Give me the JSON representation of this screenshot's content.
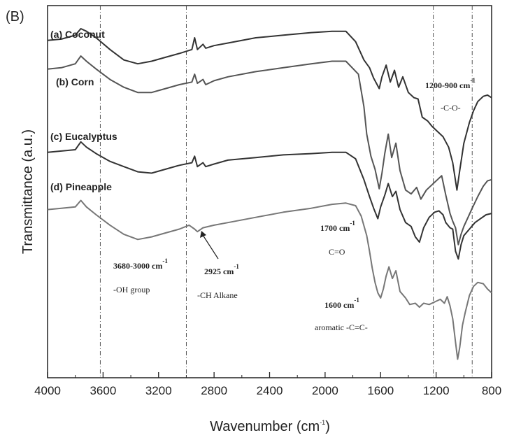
{
  "chart_data": {
    "type": "line",
    "panel_label": "(B)",
    "xlabel": "Wavenumber (cm",
    "xlabel_sup": "-1",
    "xlabel_close": ")",
    "ylabel": "Transmittance (a.u.)",
    "xlim": [
      4000,
      800
    ],
    "x_reversed": true,
    "xticks": [
      4000,
      3600,
      3200,
      2800,
      2400,
      2000,
      1600,
      1200,
      800
    ],
    "reference_lines": [
      3620,
      3000,
      1220,
      940
    ],
    "grid": false,
    "series": [
      {
        "name": "(a) Coconut",
        "color": "#333333",
        "offset": 0,
        "points": [
          [
            4000,
            32
          ],
          [
            3900,
            30
          ],
          [
            3800,
            24
          ],
          [
            3760,
            14
          ],
          [
            3720,
            18
          ],
          [
            3650,
            28
          ],
          [
            3550,
            46
          ],
          [
            3450,
            62
          ],
          [
            3350,
            68
          ],
          [
            3250,
            64
          ],
          [
            3150,
            58
          ],
          [
            3050,
            52
          ],
          [
            2960,
            46
          ],
          [
            2940,
            28
          ],
          [
            2920,
            46
          ],
          [
            2880,
            38
          ],
          [
            2860,
            44
          ],
          [
            2800,
            40
          ],
          [
            2700,
            36
          ],
          [
            2500,
            28
          ],
          [
            2300,
            24
          ],
          [
            2100,
            20
          ],
          [
            1950,
            18
          ],
          [
            1850,
            18
          ],
          [
            1780,
            34
          ],
          [
            1720,
            62
          ],
          [
            1680,
            74
          ],
          [
            1650,
            90
          ],
          [
            1610,
            106
          ],
          [
            1590,
            88
          ],
          [
            1560,
            70
          ],
          [
            1530,
            96
          ],
          [
            1500,
            78
          ],
          [
            1470,
            104
          ],
          [
            1440,
            88
          ],
          [
            1400,
            112
          ],
          [
            1360,
            120
          ],
          [
            1330,
            122
          ],
          [
            1300,
            150
          ],
          [
            1260,
            156
          ],
          [
            1230,
            164
          ],
          [
            1190,
            172
          ],
          [
            1150,
            180
          ],
          [
            1110,
            196
          ],
          [
            1080,
            220
          ],
          [
            1050,
            262
          ],
          [
            1030,
            232
          ],
          [
            1000,
            190
          ],
          [
            960,
            158
          ],
          [
            930,
            140
          ],
          [
            900,
            126
          ],
          [
            860,
            118
          ],
          [
            830,
            116
          ],
          [
            800,
            120
          ]
        ]
      },
      {
        "name": "(b) Corn",
        "color": "#555555",
        "offset": 70,
        "points": [
          [
            4000,
            76
          ],
          [
            3900,
            74
          ],
          [
            3800,
            68
          ],
          [
            3760,
            56
          ],
          [
            3720,
            64
          ],
          [
            3650,
            76
          ],
          [
            3550,
            92
          ],
          [
            3450,
            104
          ],
          [
            3350,
            112
          ],
          [
            3250,
            112
          ],
          [
            3150,
            106
          ],
          [
            3050,
            100
          ],
          [
            2960,
            96
          ],
          [
            2940,
            84
          ],
          [
            2920,
            98
          ],
          [
            2880,
            92
          ],
          [
            2860,
            100
          ],
          [
            2800,
            94
          ],
          [
            2700,
            88
          ],
          [
            2500,
            80
          ],
          [
            2300,
            74
          ],
          [
            2100,
            68
          ],
          [
            1950,
            64
          ],
          [
            1850,
            64
          ],
          [
            1760,
            84
          ],
          [
            1720,
            134
          ],
          [
            1700,
            176
          ],
          [
            1670,
            210
          ],
          [
            1640,
            230
          ],
          [
            1610,
            260
          ],
          [
            1590,
            236
          ],
          [
            1570,
            206
          ],
          [
            1545,
            176
          ],
          [
            1520,
            212
          ],
          [
            1490,
            190
          ],
          [
            1460,
            232
          ],
          [
            1420,
            262
          ],
          [
            1380,
            268
          ],
          [
            1340,
            258
          ],
          [
            1310,
            276
          ],
          [
            1270,
            262
          ],
          [
            1230,
            254
          ],
          [
            1190,
            246
          ],
          [
            1160,
            240
          ],
          [
            1130,
            270
          ],
          [
            1100,
            298
          ],
          [
            1080,
            310
          ],
          [
            1060,
            320
          ],
          [
            1040,
            346
          ],
          [
            1020,
            330
          ],
          [
            1000,
            318
          ],
          [
            970,
            304
          ],
          [
            940,
            290
          ],
          [
            900,
            272
          ],
          [
            860,
            256
          ],
          [
            830,
            248
          ],
          [
            800,
            246
          ]
        ]
      },
      {
        "name": "(c) Eucalyptus",
        "color": "#333333",
        "offset": 140,
        "points": [
          [
            4000,
            204
          ],
          [
            3900,
            202
          ],
          [
            3800,
            200
          ],
          [
            3760,
            188
          ],
          [
            3720,
            196
          ],
          [
            3650,
            206
          ],
          [
            3550,
            218
          ],
          [
            3450,
            226
          ],
          [
            3350,
            234
          ],
          [
            3250,
            236
          ],
          [
            3150,
            230
          ],
          [
            3050,
            224
          ],
          [
            2960,
            220
          ],
          [
            2940,
            210
          ],
          [
            2920,
            226
          ],
          [
            2880,
            220
          ],
          [
            2860,
            226
          ],
          [
            2800,
            222
          ],
          [
            2700,
            216
          ],
          [
            2500,
            212
          ],
          [
            2300,
            208
          ],
          [
            2100,
            206
          ],
          [
            1950,
            204
          ],
          [
            1850,
            204
          ],
          [
            1780,
            214
          ],
          [
            1720,
            246
          ],
          [
            1680,
            272
          ],
          [
            1650,
            290
          ],
          [
            1620,
            306
          ],
          [
            1600,
            288
          ],
          [
            1570,
            270
          ],
          [
            1545,
            252
          ],
          [
            1515,
            272
          ],
          [
            1490,
            264
          ],
          [
            1460,
            292
          ],
          [
            1420,
            312
          ],
          [
            1380,
            318
          ],
          [
            1350,
            334
          ],
          [
            1320,
            342
          ],
          [
            1290,
            320
          ],
          [
            1250,
            304
          ],
          [
            1210,
            296
          ],
          [
            1180,
            294
          ],
          [
            1150,
            300
          ],
          [
            1130,
            312
          ],
          [
            1100,
            320
          ],
          [
            1080,
            322
          ],
          [
            1060,
            356
          ],
          [
            1040,
            368
          ],
          [
            1020,
            346
          ],
          [
            1000,
            332
          ],
          [
            960,
            322
          ],
          [
            920,
            312
          ],
          [
            880,
            306
          ],
          [
            840,
            300
          ],
          [
            800,
            298
          ]
        ]
      },
      {
        "name": "(d) Pineapple",
        "color": "#777777",
        "offset": 210,
        "points": [
          [
            4000,
            292
          ],
          [
            3900,
            290
          ],
          [
            3800,
            288
          ],
          [
            3760,
            278
          ],
          [
            3720,
            288
          ],
          [
            3650,
            300
          ],
          [
            3550,
            316
          ],
          [
            3450,
            330
          ],
          [
            3350,
            338
          ],
          [
            3250,
            334
          ],
          [
            3150,
            328
          ],
          [
            3050,
            322
          ],
          [
            2980,
            316
          ],
          [
            2940,
            322
          ],
          [
            2920,
            326
          ],
          [
            2880,
            320
          ],
          [
            2800,
            316
          ],
          [
            2700,
            312
          ],
          [
            2500,
            304
          ],
          [
            2300,
            296
          ],
          [
            2100,
            290
          ],
          [
            1950,
            284
          ],
          [
            1850,
            282
          ],
          [
            1780,
            286
          ],
          [
            1740,
            302
          ],
          [
            1700,
            332
          ],
          [
            1680,
            356
          ],
          [
            1660,
            382
          ],
          [
            1640,
            404
          ],
          [
            1620,
            420
          ],
          [
            1600,
            428
          ],
          [
            1580,
            414
          ],
          [
            1560,
            394
          ],
          [
            1540,
            380
          ],
          [
            1515,
            398
          ],
          [
            1490,
            386
          ],
          [
            1460,
            418
          ],
          [
            1420,
            428
          ],
          [
            1390,
            438
          ],
          [
            1350,
            436
          ],
          [
            1320,
            442
          ],
          [
            1290,
            436
          ],
          [
            1250,
            438
          ],
          [
            1210,
            434
          ],
          [
            1170,
            430
          ],
          [
            1140,
            436
          ],
          [
            1120,
            426
          ],
          [
            1100,
            440
          ],
          [
            1080,
            460
          ],
          [
            1060,
            496
          ],
          [
            1045,
            522
          ],
          [
            1030,
            504
          ],
          [
            1010,
            470
          ],
          [
            990,
            450
          ],
          [
            960,
            424
          ],
          [
            930,
            410
          ],
          [
            900,
            404
          ],
          [
            860,
            406
          ],
          [
            830,
            414
          ],
          [
            800,
            420
          ]
        ]
      }
    ],
    "annotations": [
      {
        "text": "3680-3000 cm",
        "sup": "-1"
      },
      {
        "text": "-OH group"
      },
      {
        "text": "2925 cm",
        "sup": "-1"
      },
      {
        "text": "-CH Alkane"
      },
      {
        "text": "1700 cm",
        "sup": "-1"
      },
      {
        "text": "C=O"
      },
      {
        "text": "1600 cm",
        "sup": "-1"
      },
      {
        "text": "aromatic -C=C-"
      },
      {
        "text": "1200-900 cm",
        "sup": "-1"
      },
      {
        "text": "-C-O-"
      }
    ]
  }
}
